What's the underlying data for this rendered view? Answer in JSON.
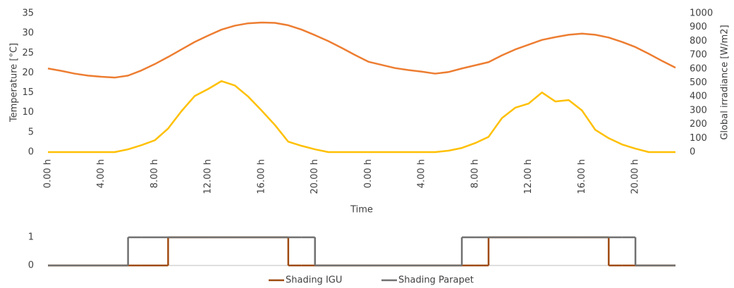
{
  "chart_data": [
    {
      "type": "line",
      "categories": [
        "0.00 h",
        null,
        null,
        null,
        "4.00 h",
        null,
        null,
        null,
        "8.00 h",
        null,
        null,
        null,
        "12.00 h",
        null,
        null,
        null,
        "16.00 h",
        null,
        null,
        null,
        "20.00 h",
        null,
        null,
        null,
        "0.00 h",
        null,
        null,
        null,
        "4.00 h",
        null,
        null,
        null,
        "8.00 h",
        null,
        null,
        null,
        "12.00 h",
        null,
        null,
        null,
        "16.00 h",
        null,
        null,
        null,
        "20.00 h",
        null,
        null,
        null
      ],
      "xlabel": "Time",
      "ylabel": "Temperature [°C]",
      "y2label": "Global irradiance [W/m2]",
      "ylim": [
        0,
        35
      ],
      "yticks": [
        0,
        5,
        10,
        15,
        20,
        25,
        30,
        35
      ],
      "y2lim": [
        0,
        1000
      ],
      "y2ticks": [
        0,
        100,
        200,
        300,
        400,
        500,
        600,
        700,
        800,
        900,
        1000
      ],
      "series": [
        {
          "name": "Temperature",
          "color": "#ED7D31",
          "values": [
            21.1,
            20.5,
            19.8,
            19.3,
            19.0,
            18.8,
            19.3,
            20.6,
            22.2,
            24.0,
            25.9,
            27.8,
            29.4,
            30.9,
            31.9,
            32.5,
            32.7,
            32.6,
            32.0,
            30.9,
            29.5,
            28.0,
            26.3,
            24.5,
            22.8,
            22.0,
            21.2,
            20.7,
            20.3,
            19.8,
            20.2,
            21.1,
            21.9,
            22.7,
            24.4,
            25.9,
            27.1,
            28.3,
            29.0,
            29.6,
            29.9,
            29.6,
            28.9,
            27.8,
            26.5,
            24.8,
            23.0,
            21.3
          ]
        },
        {
          "name": "Global irradiance",
          "color": "#FFC000",
          "axis": "y2",
          "values": [
            0,
            0,
            0,
            0,
            0,
            0,
            20,
            50,
            85,
            170,
            295,
            405,
            455,
            512,
            480,
            400,
            300,
            195,
            75,
            45,
            20,
            0,
            0,
            0,
            0,
            0,
            0,
            0,
            0,
            0,
            10,
            30,
            65,
            110,
            245,
            320,
            350,
            430,
            365,
            375,
            300,
            160,
            100,
            55,
            25,
            0,
            0,
            0
          ]
        }
      ]
    },
    {
      "type": "step",
      "ylim": [
        0,
        1
      ],
      "yticks": [
        0,
        1
      ],
      "series": [
        {
          "name": "Shading IGU",
          "color": "#9E4A10",
          "values": [
            0,
            0,
            0,
            0,
            0,
            0,
            0,
            0,
            0,
            1,
            1,
            1,
            1,
            1,
            1,
            1,
            1,
            1,
            0,
            0,
            0,
            0,
            0,
            0,
            0,
            0,
            0,
            0,
            0,
            0,
            0,
            0,
            0,
            1,
            1,
            1,
            1,
            1,
            1,
            1,
            1,
            1,
            0,
            0,
            0,
            0,
            0,
            0
          ]
        },
        {
          "name": "Shading Parapet",
          "color": "#707070",
          "values": [
            0,
            0,
            0,
            0,
            0,
            0,
            1,
            1,
            1,
            1,
            1,
            1,
            1,
            1,
            1,
            1,
            1,
            1,
            1,
            1,
            0,
            0,
            0,
            0,
            0,
            0,
            0,
            0,
            0,
            0,
            0,
            1,
            1,
            1,
            1,
            1,
            1,
            1,
            1,
            1,
            1,
            1,
            1,
            1,
            0,
            0,
            0,
            0
          ]
        }
      ]
    }
  ]
}
